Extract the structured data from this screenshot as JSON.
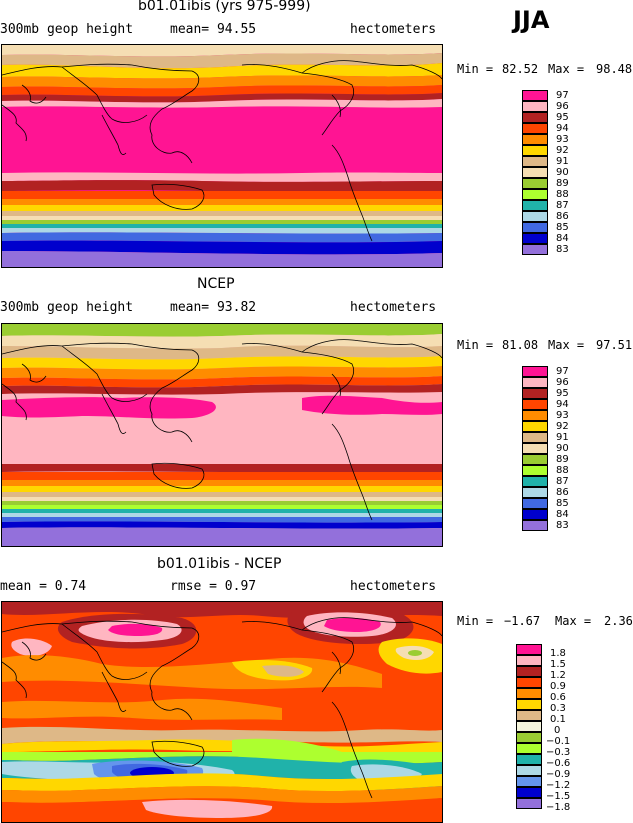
{
  "season": "JJA",
  "panels": [
    {
      "title": "b01.01ibis (yrs 975-999)",
      "left_label": "300mb geop height",
      "mid_label": "mean=  94.55",
      "right_label": "hectometers",
      "min_label": "Min =",
      "min_value": "82.52",
      "max_label": "Max =",
      "max_value": "98.48",
      "legend": [
        "97",
        "96",
        "95",
        "94",
        "93",
        "92",
        "91",
        "90",
        "89",
        "88",
        "87",
        "86",
        "85",
        "84",
        "83"
      ]
    },
    {
      "title": "NCEP",
      "left_label": "300mb geop height",
      "mid_label": "mean=  93.82",
      "right_label": "hectometers",
      "min_label": "Min =",
      "min_value": "81.08",
      "max_label": "Max =",
      "max_value": "97.51",
      "legend": [
        "97",
        "96",
        "95",
        "94",
        "93",
        "92",
        "91",
        "90",
        "89",
        "88",
        "87",
        "86",
        "85",
        "84",
        "83"
      ]
    },
    {
      "title": "b01.01ibis - NCEP",
      "left_label": "mean =    0.74",
      "mid_label": "rmse =    0.97",
      "right_label": "hectometers",
      "min_label": "Min =",
      "min_value": "−1.67",
      "max_label": "Max =",
      "max_value": "2.36",
      "legend": [
        "1.8",
        "1.5",
        "1.2",
        "0.9",
        "0.6",
        "0.3",
        "0.1",
        "0",
        "−0.1",
        "−0.3",
        "−0.6",
        "−0.9",
        "−1.2",
        "−1.5",
        "−1.8"
      ]
    }
  ],
  "colors": {
    "level_colors": [
      "#ff1493",
      "#ffb6c1",
      "#b22222",
      "#ff4500",
      "#ff8c00",
      "#ffd700",
      "#deb887",
      "#f5deb3",
      "#9acd32",
      "#adff2f",
      "#20b2aa",
      "#add8e6",
      "#4169e1",
      "#0000cd",
      "#9370db"
    ],
    "diff_colors": [
      "#ff1493",
      "#ffb6c1",
      "#b22222",
      "#ff4500",
      "#ff8c00",
      "#ffd700",
      "#deb887",
      "#f5f5dc",
      "#9acd32",
      "#adff2f",
      "#20b2aa",
      "#add8e6",
      "#6495ed",
      "#0000cd",
      "#9370db"
    ]
  }
}
